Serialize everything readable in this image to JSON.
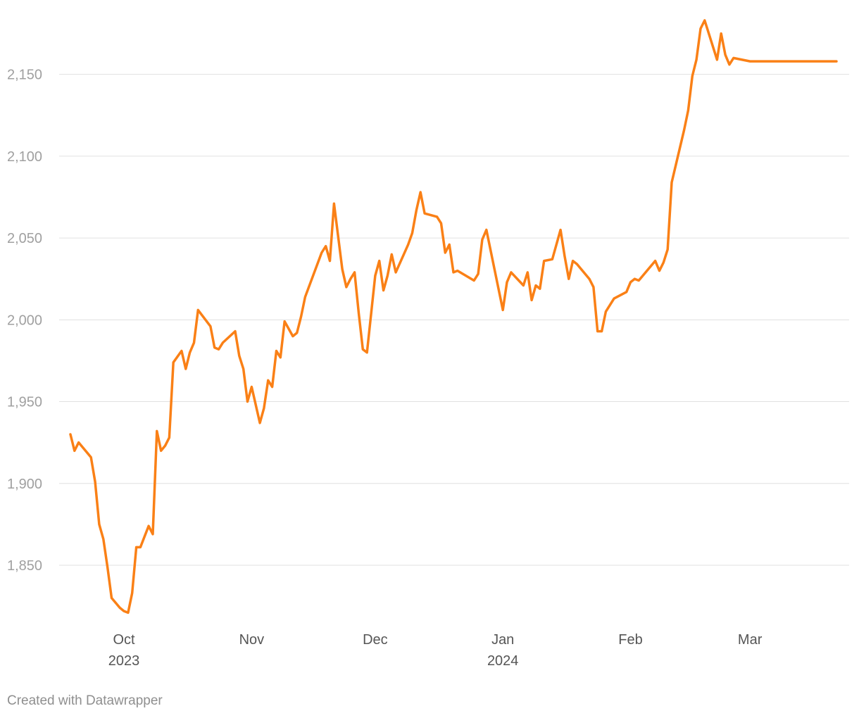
{
  "chart_data": {
    "type": "line",
    "title": "",
    "xlabel": "",
    "ylabel": "",
    "grid": true,
    "y_ticks": [
      1850,
      1900,
      1950,
      2000,
      2050,
      2100,
      2150
    ],
    "y_tick_labels": [
      "1,850",
      "1,900",
      "1,950",
      "2,000",
      "2,050",
      "2,100",
      "2,150"
    ],
    "ylim": [
      1816,
      2186
    ],
    "xlim": [
      "2023-09-18",
      "2024-03-22"
    ],
    "x_ticks": [
      {
        "date": "2023-10-01",
        "label": "Oct",
        "sublabel": "2023"
      },
      {
        "date": "2023-11-01",
        "label": "Nov",
        "sublabel": ""
      },
      {
        "date": "2023-12-01",
        "label": "Dec",
        "sublabel": ""
      },
      {
        "date": "2024-01-01",
        "label": "Jan",
        "sublabel": "2024"
      },
      {
        "date": "2024-02-01",
        "label": "Feb",
        "sublabel": ""
      },
      {
        "date": "2024-03-01",
        "label": "Mar",
        "sublabel": ""
      }
    ],
    "series": [
      {
        "color": "#fa8016",
        "x": [
          "2023-09-18",
          "2023-09-19",
          "2023-09-20",
          "2023-09-23",
          "2023-09-24",
          "2023-09-25",
          "2023-09-26",
          "2023-09-27",
          "2023-09-28",
          "2023-09-30",
          "2023-10-01",
          "2023-10-02",
          "2023-10-03",
          "2023-10-04",
          "2023-10-05",
          "2023-10-07",
          "2023-10-08",
          "2023-10-09",
          "2023-10-10",
          "2023-10-11",
          "2023-10-12",
          "2023-10-13",
          "2023-10-15",
          "2023-10-16",
          "2023-10-17",
          "2023-10-18",
          "2023-10-19",
          "2023-10-22",
          "2023-10-23",
          "2023-10-24",
          "2023-10-25",
          "2023-10-28",
          "2023-10-29",
          "2023-10-30",
          "2023-10-31",
          "2023-11-01",
          "2023-11-03",
          "2023-11-04",
          "2023-11-05",
          "2023-11-06",
          "2023-11-07",
          "2023-11-08",
          "2023-11-09",
          "2023-11-11",
          "2023-11-12",
          "2023-11-13",
          "2023-11-14",
          "2023-11-18",
          "2023-11-19",
          "2023-11-20",
          "2023-11-21",
          "2023-11-23",
          "2023-11-24",
          "2023-11-25",
          "2023-11-26",
          "2023-11-27",
          "2023-11-28",
          "2023-11-29",
          "2023-12-01",
          "2023-12-02",
          "2023-12-03",
          "2023-12-04",
          "2023-12-05",
          "2023-12-06",
          "2023-12-09",
          "2023-12-10",
          "2023-12-11",
          "2023-12-12",
          "2023-12-13",
          "2023-12-16",
          "2023-12-17",
          "2023-12-18",
          "2023-12-19",
          "2023-12-20",
          "2023-12-21",
          "2023-12-25",
          "2023-12-26",
          "2023-12-27",
          "2023-12-28",
          "2024-01-01",
          "2024-01-02",
          "2024-01-03",
          "2024-01-06",
          "2024-01-07",
          "2024-01-08",
          "2024-01-09",
          "2024-01-10",
          "2024-01-11",
          "2024-01-13",
          "2024-01-15",
          "2024-01-16",
          "2024-01-17",
          "2024-01-18",
          "2024-01-19",
          "2024-01-22",
          "2024-01-23",
          "2024-01-24",
          "2024-01-25",
          "2024-01-26",
          "2024-01-28",
          "2024-01-31",
          "2024-02-01",
          "2024-02-02",
          "2024-02-03",
          "2024-02-07",
          "2024-02-08",
          "2024-02-09",
          "2024-02-10",
          "2024-02-11",
          "2024-02-14",
          "2024-02-15",
          "2024-02-16",
          "2024-02-17",
          "2024-02-18",
          "2024-02-19",
          "2024-02-22",
          "2024-02-23",
          "2024-02-24",
          "2024-02-25",
          "2024-02-26",
          "2024-03-01",
          "2024-03-02",
          "2024-03-03",
          "2024-03-04",
          "2024-03-06",
          "2024-03-08",
          "2024-03-09",
          "2024-03-10",
          "2024-03-11",
          "2024-03-14",
          "2024-03-15",
          "2024-03-16",
          "2024-03-17",
          "2024-03-18",
          "2024-03-20",
          "2024-03-21",
          "2024-03-22"
        ],
        "values": [
          1930,
          1920,
          1925,
          1916,
          1901,
          1875,
          1866,
          1849,
          1830,
          1824,
          1822,
          1821,
          1833,
          1861,
          1861,
          1874,
          1869,
          1932,
          1920,
          1923,
          1928,
          1974,
          1981,
          1970,
          1980,
          1986,
          2006,
          1996,
          1983,
          1982,
          1986,
          1993,
          1978,
          1970,
          1950,
          1959,
          1937,
          1946,
          1963,
          1959,
          1981,
          1977,
          1999,
          1990,
          1992,
          2002,
          2014,
          2041,
          2045,
          2036,
          2071,
          2031,
          2020,
          2025,
          2029,
          2004,
          1982,
          1980,
          2027,
          2036,
          2018,
          2027,
          2040,
          2029,
          2046,
          2053,
          2067,
          2078,
          2065,
          2063,
          2059,
          2041,
          2046,
          2029,
          2030,
          2024,
          2028,
          2049,
          2055,
          2006,
          2023,
          2029,
          2021,
          2029,
          2012,
          2021,
          2019,
          2036,
          2037,
          2055,
          2039,
          2025,
          2036,
          2034,
          2025,
          2020,
          1993,
          1993,
          2005,
          2013,
          2017,
          2023,
          2025,
          2024,
          2036,
          2030,
          2035,
          2043,
          2084,
          2116,
          2128,
          2149,
          2159,
          2178,
          2183,
          2159,
          2175,
          2162,
          2156,
          2160,
          2158,
          2158,
          2158,
          2158,
          2158,
          2158,
          2158,
          2158,
          2158,
          2158,
          2158,
          2158,
          2158,
          2158,
          2158,
          2158,
          2158
        ]
      }
    ]
  },
  "footer": {
    "credit": "Created with Datawrapper"
  }
}
